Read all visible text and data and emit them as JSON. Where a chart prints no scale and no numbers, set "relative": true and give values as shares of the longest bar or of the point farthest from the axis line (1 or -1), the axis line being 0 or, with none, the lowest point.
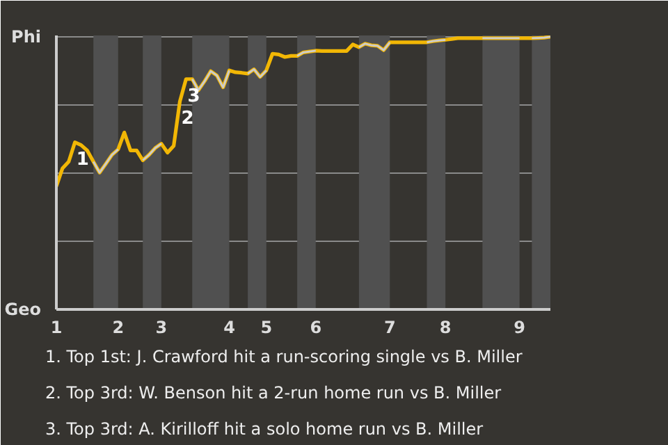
{
  "chart_data": {
    "type": "line",
    "relative": true,
    "categories": [
      "1",
      null,
      null,
      null,
      null,
      null,
      null,
      null,
      null,
      null,
      "2",
      null,
      null,
      null,
      null,
      null,
      null,
      "3",
      null,
      null,
      null,
      null,
      null,
      null,
      null,
      null,
      null,
      null,
      "4",
      null,
      null,
      null,
      null,
      null,
      "5",
      null,
      null,
      null,
      null,
      null,
      null,
      null,
      "6",
      null,
      null,
      null,
      null,
      null,
      null,
      null,
      null,
      null,
      null,
      null,
      "7",
      null,
      null,
      null,
      null,
      null,
      null,
      null,
      null,
      "8",
      null,
      null,
      null,
      null,
      null,
      null,
      null,
      null,
      null,
      null,
      null,
      "9",
      null,
      null,
      null,
      null,
      null
    ],
    "series": [
      {
        "color": "#f2b705",
        "values": [
          0.452,
          0.518,
          0.542,
          0.613,
          0.603,
          0.583,
          0.542,
          0.502,
          0.534,
          0.567,
          0.587,
          0.649,
          0.583,
          0.583,
          0.547,
          0.567,
          0.592,
          0.608,
          0.575,
          0.6,
          0.763,
          0.845,
          0.845,
          0.804,
          0.837,
          0.874,
          0.858,
          0.815,
          0.877,
          0.87,
          0.868,
          0.865,
          0.881,
          0.853,
          0.877,
          0.938,
          0.935,
          0.926,
          0.93,
          0.93,
          0.943,
          0.946,
          0.949,
          0.948,
          0.948,
          0.948,
          0.948,
          0.948,
          0.972,
          0.962,
          0.975,
          0.969,
          0.967,
          0.951,
          0.98,
          0.98,
          0.98,
          0.98,
          0.98,
          0.98,
          0.98,
          0.984,
          0.987,
          0.989,
          0.992,
          0.995,
          0.995,
          0.995,
          0.995,
          0.995,
          0.995,
          0.995,
          0.995,
          0.995,
          0.995,
          0.995,
          0.995,
          0.995,
          0.996,
          0.997,
          1.0
        ]
      },
      {
        "color": "#cccccc",
        "values": [
          null,
          null,
          null,
          null,
          null,
          null,
          0.542,
          0.502,
          0.534,
          0.567,
          0.587,
          null,
          null,
          null,
          0.547,
          0.567,
          0.592,
          0.608,
          null,
          null,
          null,
          null,
          0.845,
          0.804,
          0.837,
          0.874,
          0.858,
          0.815,
          0.877,
          null,
          null,
          0.865,
          0.881,
          0.853,
          0.877,
          null,
          null,
          null,
          null,
          0.93,
          0.943,
          0.946,
          0.949,
          null,
          null,
          null,
          null,
          null,
          null,
          0.962,
          0.975,
          0.969,
          0.967,
          0.951,
          0.98,
          null,
          null,
          null,
          null,
          null,
          0.98,
          0.984,
          0.987,
          0.989,
          null,
          null,
          null,
          null,
          null,
          0.995,
          0.995,
          0.995,
          0.995,
          0.995,
          0.995,
          0.995,
          null,
          0.995,
          0.996,
          0.997,
          1.0
        ]
      }
    ],
    "annotations": [
      "Phi",
      "Geo",
      {
        "text": "1",
        "y": 0.613
      },
      {
        "text": "2",
        "y": 0.763
      },
      {
        "text": "3",
        "y": 0.845
      },
      "1. Top 1st: J. Crawford hit a run-scoring single vs B. Miller",
      "2. Top 3rd: W. Benson hit a 2-run home run vs B. Miller",
      "3. Top 3rd: A. Kirilloff hit a solo home run vs B. Miller"
    ]
  }
}
